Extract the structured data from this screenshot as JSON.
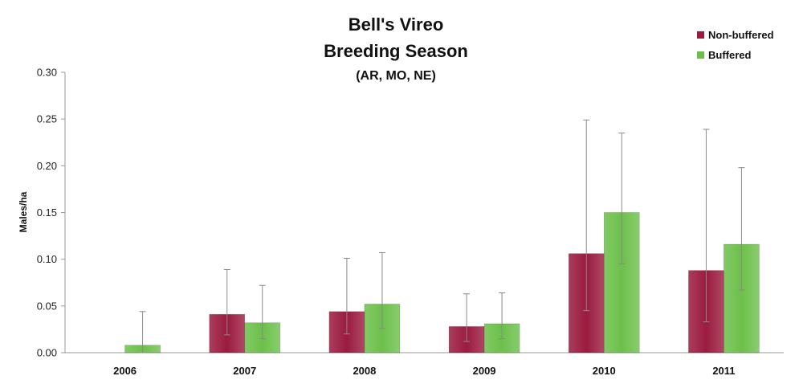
{
  "chart_data": {
    "type": "bar",
    "title": "Bell's Vireo",
    "subtitle": "Breeding Season",
    "subtitle2": "(AR, MO, NE)",
    "xlabel": "",
    "ylabel": "Males/ha",
    "ylim": [
      0,
      0.3
    ],
    "yticks": [
      "0.00",
      "0.05",
      "0.10",
      "0.15",
      "0.20",
      "0.25",
      "0.30"
    ],
    "yticks_values": [
      0,
      0.05,
      0.1,
      0.15,
      0.2,
      0.25,
      0.3
    ],
    "categories": [
      "2006",
      "2007",
      "2008",
      "2009",
      "2010",
      "2011"
    ],
    "legend_position": "top-right",
    "grid": false,
    "series": [
      {
        "name": "Non-buffered",
        "color": "#9b1b3f",
        "values": [
          0,
          0.041,
          0.044,
          0.028,
          0.106,
          0.088
        ],
        "err_low": [
          null,
          0.019,
          0.02,
          0.012,
          0.045,
          0.033
        ],
        "err_high": [
          null,
          0.089,
          0.101,
          0.063,
          0.249,
          0.239
        ]
      },
      {
        "name": "Buffered",
        "color": "#6cc04a",
        "values": [
          0.008,
          0.032,
          0.052,
          0.031,
          0.15,
          0.116
        ],
        "err_low": [
          0.0,
          0.015,
          0.026,
          0.015,
          0.095,
          0.067
        ],
        "err_high": [
          0.044,
          0.072,
          0.107,
          0.064,
          0.235,
          0.198
        ]
      }
    ]
  }
}
